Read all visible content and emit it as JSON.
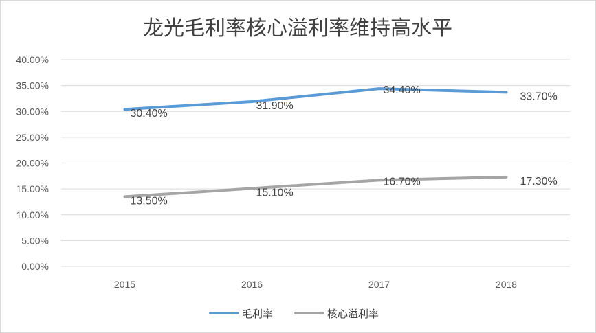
{
  "chart_data": {
    "type": "line",
    "title": "龙光毛利率核心溢利率维持高水平",
    "categories": [
      "2015",
      "2016",
      "2017",
      "2018"
    ],
    "ylim": [
      0,
      40
    ],
    "yticks": [
      "0.00%",
      "5.00%",
      "10.00%",
      "15.00%",
      "20.00%",
      "25.00%",
      "30.00%",
      "35.00%",
      "40.00%"
    ],
    "grid": true,
    "legend_position": "bottom",
    "series": [
      {
        "name": "毛利率",
        "color": "#5b9bd5",
        "values": [
          30.4,
          31.9,
          34.4,
          33.7
        ],
        "labels": [
          "30.40%",
          "31.90%",
          "34.40%",
          "33.70%"
        ]
      },
      {
        "name": "核心溢利率",
        "color": "#a5a5a5",
        "values": [
          13.5,
          15.1,
          16.7,
          17.3
        ],
        "labels": [
          "13.50%",
          "15.10%",
          "16.70%",
          "17.30%"
        ]
      }
    ]
  }
}
